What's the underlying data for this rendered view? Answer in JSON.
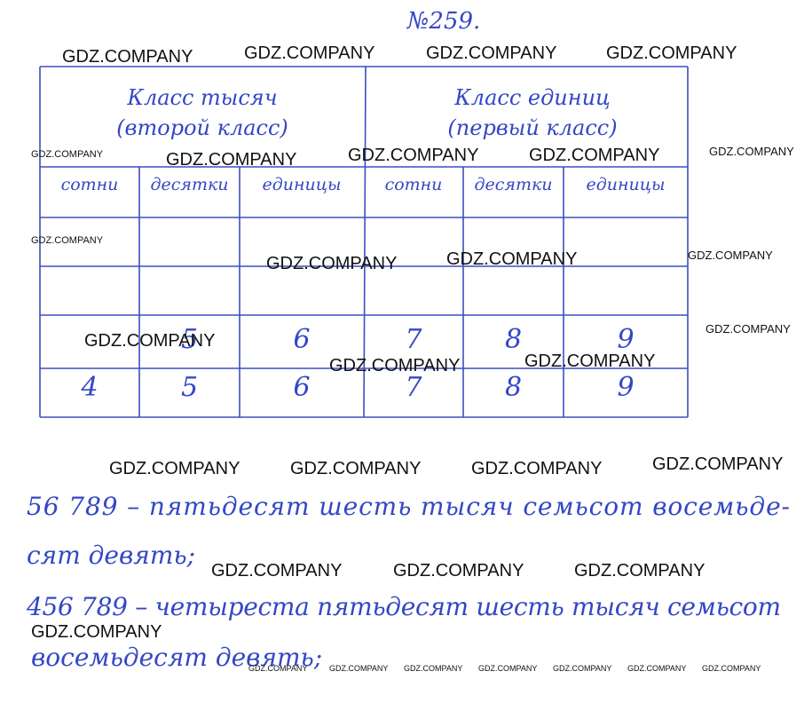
{
  "header": {
    "title": "№259."
  },
  "table": {
    "class_headers": [
      [
        "Класс тысяч",
        "(второй класс)"
      ],
      [
        "Класс единиц",
        "(первый класс)"
      ]
    ],
    "column_headers": [
      "сотни",
      "десятки",
      "единицы",
      "сотни",
      "десятки",
      "единицы"
    ],
    "rows": [
      [
        null,
        "5",
        "6",
        "7",
        "8",
        "9"
      ],
      [
        "4",
        "5",
        "6",
        "7",
        "8",
        "9"
      ]
    ]
  },
  "answer_lines": [
    "56 789 – пятьдесят шесть тысяч семьсот восемьде-",
    "сят девять;",
    "456 789 – четыреста пятьдесят шесть тысяч семьсот",
    "восемьдесят девять;"
  ],
  "watermarks": [
    "GDZ.COMPANY",
    "GDZ.COMPANY",
    "GDZ.COMPANY",
    "GDZ.COMPANY",
    "GDZ.COMPANY",
    "GDZ.COMPANY",
    "GDZ.COMPANY",
    "GDZ.COMPANY",
    "GDZ.COMPANY",
    "GDZ.COMPANY",
    "GDZ.COMPANY",
    "GDZ.COMPANY",
    "GDZ.COMPANY",
    "GDZ.COMPANY",
    "GDZ.COMPANY",
    "GDZ.COMPANY",
    "GDZ.COMPANY",
    "GDZ.COMPANY",
    "GDZ.COMPANY",
    "GDZ.COMPANY",
    "GDZ.COMPANY",
    "GDZ.COMPANY",
    "GDZ.COMPANY",
    "GDZ.COMPANY",
    "GDZ.COMPANY",
    "GDZ.COMPANY",
    "GDZ.COMPANY",
    "GDZ.COMPANY",
    "GDZ.COMPANY",
    "GDZ.COMPANY",
    "GDZ.COMPANY",
    "GDZ.COMPANY"
  ]
}
